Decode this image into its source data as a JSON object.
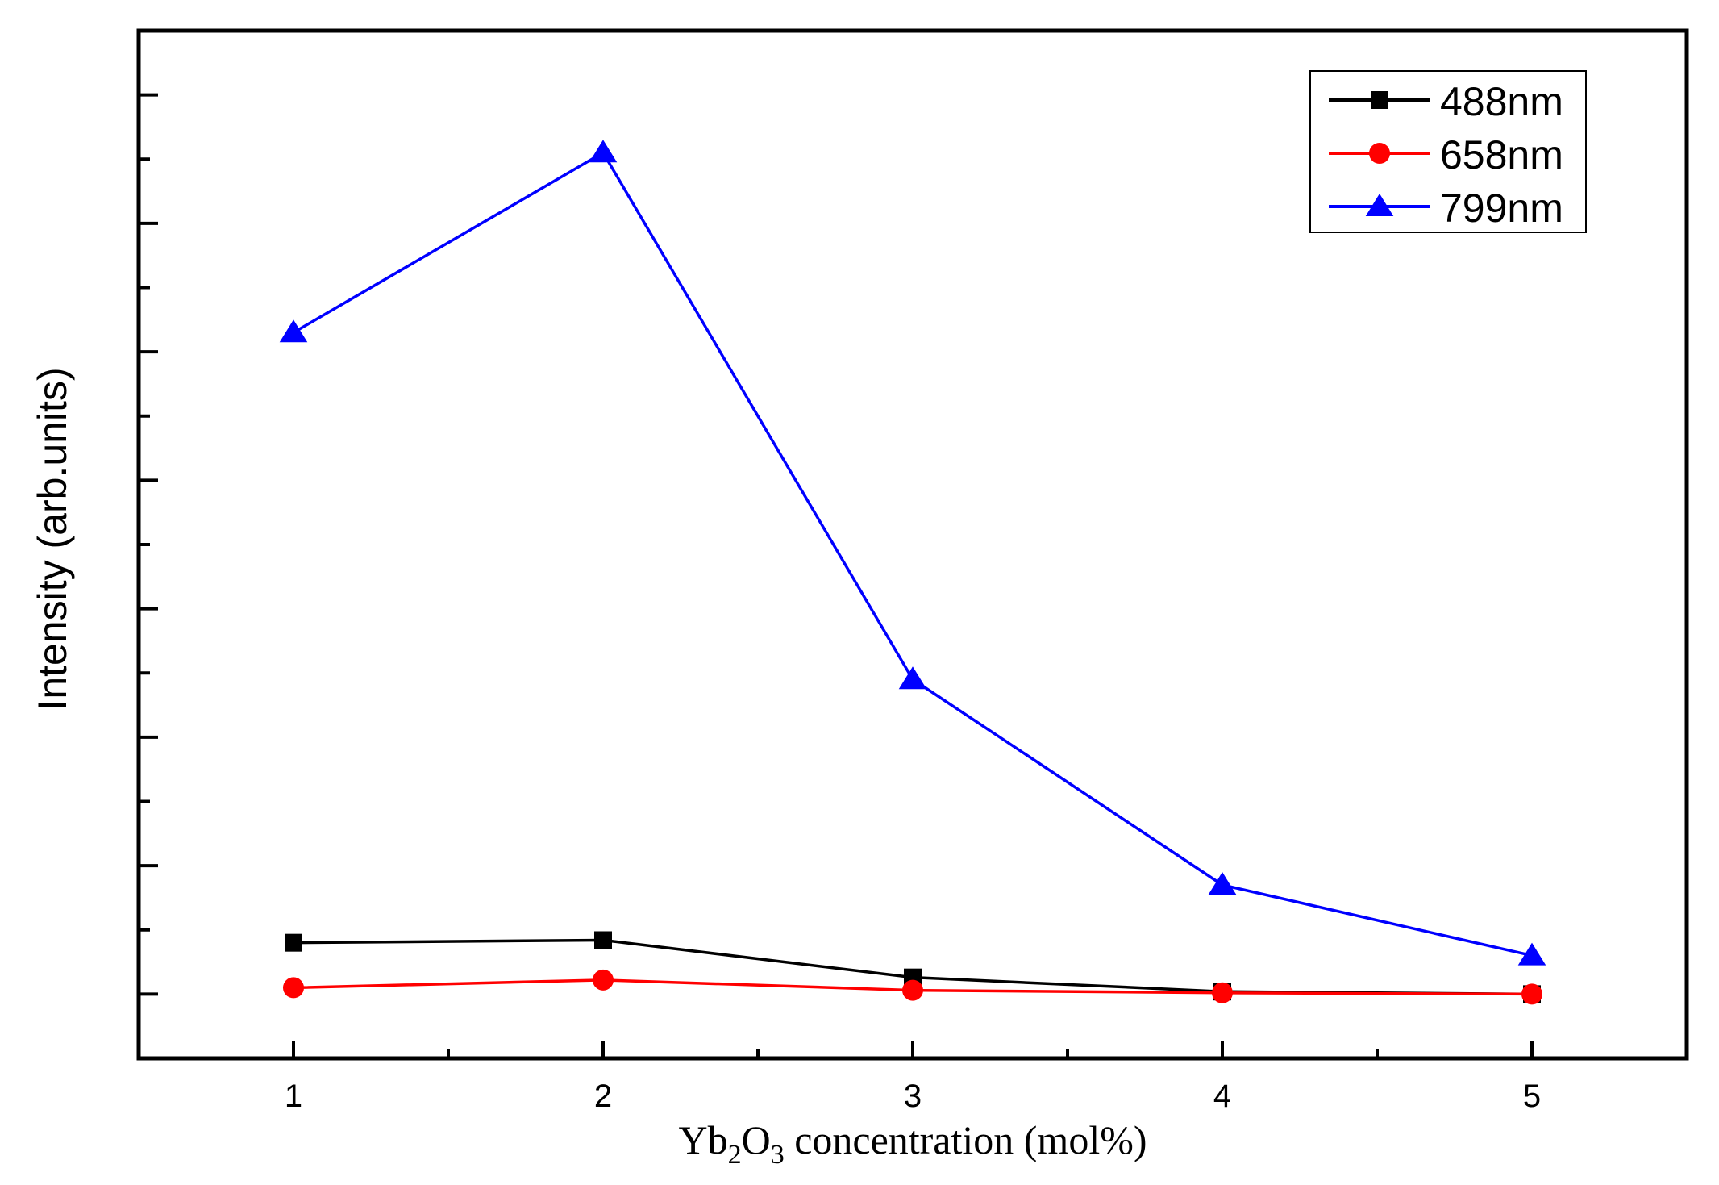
{
  "chart_data": {
    "type": "line",
    "title": "",
    "xlabel": {
      "prefix": "Yb",
      "sub1": "2",
      "mid": "O",
      "sub2": "3",
      "suffix": " concentration (mol%)"
    },
    "ylabel": "Intensity (arb.units)",
    "x": [
      1,
      2,
      3,
      4,
      5
    ],
    "x_tick_labels": [
      "1",
      "2",
      "3",
      "4",
      "5"
    ],
    "xlim": [
      0.5,
      5.5
    ],
    "ylim": [
      -0.5,
      7.5
    ],
    "y_tick_labels_shown": false,
    "grid": false,
    "legend_position": "top-right",
    "series": [
      {
        "name": "488nm",
        "color": "#000000",
        "marker": "square",
        "values": [
          0.4,
          0.42,
          0.13,
          0.02,
          0.0
        ]
      },
      {
        "name": "658nm",
        "color": "#ff0000",
        "marker": "circle",
        "values": [
          0.05,
          0.11,
          0.03,
          0.01,
          0.0
        ]
      },
      {
        "name": "799nm",
        "color": "#0000ff",
        "marker": "triangle",
        "values": [
          5.15,
          6.55,
          2.45,
          0.85,
          0.3
        ]
      }
    ]
  }
}
